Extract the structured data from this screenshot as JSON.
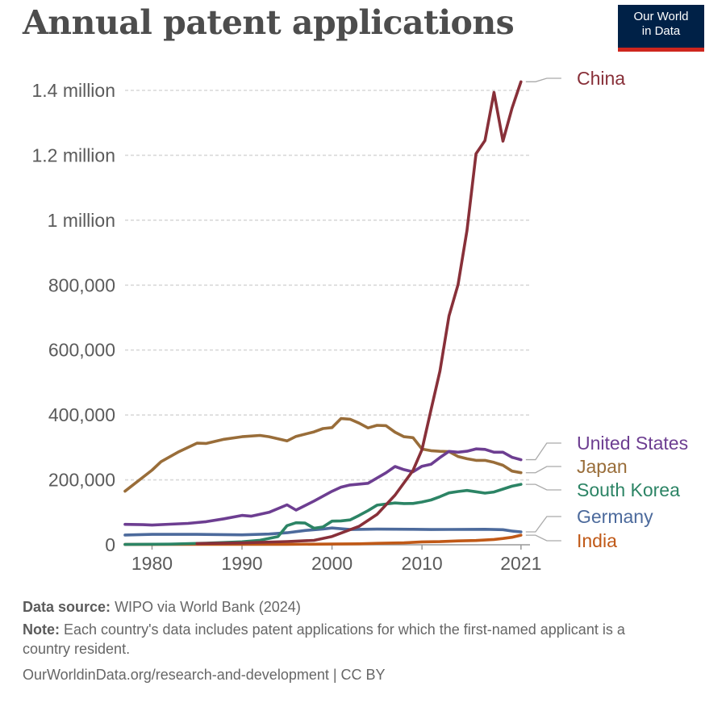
{
  "header": {
    "title": "Annual patent applications",
    "logo_line1": "Our World",
    "logo_line2": "in Data"
  },
  "footer": {
    "source_label": "Data source:",
    "source_text": "WIPO via World Bank (2024)",
    "note_label": "Note:",
    "note_text": "Each country's data includes patent applications for which the first-named applicant is a country resident.",
    "url_text": "OurWorldinData.org/research-and-development",
    "license_text": "| CC BY"
  },
  "colors": {
    "china": "#883039",
    "united_states": "#6d3e91",
    "japan": "#996d39",
    "south_korea": "#2c8465",
    "germany": "#4c6a9c",
    "india": "#c05917",
    "grid": "#d9d9d9",
    "axis_text": "#5b5b5b"
  },
  "chart_data": {
    "type": "line",
    "title": "Annual patent applications",
    "xlim": [
      1977,
      2022
    ],
    "ylim": [
      0,
      1400000
    ],
    "x_ticks": [
      1980,
      1990,
      2000,
      2010,
      2021
    ],
    "y_ticks": [
      {
        "value": 0,
        "label": "0"
      },
      {
        "value": 200000,
        "label": "200,000"
      },
      {
        "value": 400000,
        "label": "400,000"
      },
      {
        "value": 600000,
        "label": "600,000"
      },
      {
        "value": 800000,
        "label": "800,000"
      },
      {
        "value": 1000000,
        "label": "1 million"
      },
      {
        "value": 1200000,
        "label": "1.2 million"
      },
      {
        "value": 1400000,
        "label": "1.4 million"
      }
    ],
    "grid": true,
    "series": [
      {
        "name": "China",
        "color_key": "china",
        "points": [
          [
            1985,
            4000
          ],
          [
            1990,
            5800
          ],
          [
            1995,
            10000
          ],
          [
            1998,
            13700
          ],
          [
            2000,
            25600
          ],
          [
            2003,
            56800
          ],
          [
            2005,
            93500
          ],
          [
            2007,
            153000
          ],
          [
            2009,
            229000
          ],
          [
            2010,
            293000
          ],
          [
            2011,
            415800
          ],
          [
            2012,
            535300
          ],
          [
            2013,
            704900
          ],
          [
            2014,
            801100
          ],
          [
            2015,
            968300
          ],
          [
            2016,
            1204900
          ],
          [
            2017,
            1245700
          ],
          [
            2018,
            1393800
          ],
          [
            2019,
            1243600
          ],
          [
            2020,
            1344800
          ],
          [
            2021,
            1426600
          ]
        ]
      },
      {
        "name": "United States",
        "color_key": "united_states",
        "points": [
          [
            1977,
            62900
          ],
          [
            1979,
            62000
          ],
          [
            1980,
            60600
          ],
          [
            1982,
            63300
          ],
          [
            1984,
            66000
          ],
          [
            1986,
            71100
          ],
          [
            1988,
            80000
          ],
          [
            1990,
            90600
          ],
          [
            1991,
            88000
          ],
          [
            1993,
            99900
          ],
          [
            1995,
            123000
          ],
          [
            1996,
            106900
          ],
          [
            1998,
            134700
          ],
          [
            2000,
            164800
          ],
          [
            2001,
            177500
          ],
          [
            2002,
            184200
          ],
          [
            2004,
            189500
          ],
          [
            2006,
            221800
          ],
          [
            2007,
            241300
          ],
          [
            2008,
            231600
          ],
          [
            2009,
            224900
          ],
          [
            2010,
            241900
          ],
          [
            2011,
            247800
          ],
          [
            2012,
            268800
          ],
          [
            2013,
            287800
          ],
          [
            2014,
            285100
          ],
          [
            2015,
            288300
          ],
          [
            2016,
            295300
          ],
          [
            2017,
            293900
          ],
          [
            2018,
            285100
          ],
          [
            2019,
            285100
          ],
          [
            2020,
            269600
          ],
          [
            2021,
            262200
          ]
        ]
      },
      {
        "name": "Japan",
        "color_key": "japan",
        "points": [
          [
            1977,
            165000
          ],
          [
            1980,
            230000
          ],
          [
            1981,
            256000
          ],
          [
            1983,
            287000
          ],
          [
            1985,
            313000
          ],
          [
            1986,
            312000
          ],
          [
            1988,
            325000
          ],
          [
            1990,
            333000
          ],
          [
            1992,
            337000
          ],
          [
            1993,
            333000
          ],
          [
            1995,
            320000
          ],
          [
            1996,
            334000
          ],
          [
            1998,
            348000
          ],
          [
            1999,
            358000
          ],
          [
            2000,
            361000
          ],
          [
            2001,
            389000
          ],
          [
            2002,
            387000
          ],
          [
            2003,
            375000
          ],
          [
            2004,
            360000
          ],
          [
            2005,
            368000
          ],
          [
            2006,
            367000
          ],
          [
            2007,
            347000
          ],
          [
            2008,
            333000
          ],
          [
            2009,
            330000
          ],
          [
            2010,
            295000
          ],
          [
            2011,
            290000
          ],
          [
            2012,
            288000
          ],
          [
            2013,
            287000
          ],
          [
            2014,
            272000
          ],
          [
            2015,
            265000
          ],
          [
            2016,
            260000
          ],
          [
            2017,
            260000
          ],
          [
            2018,
            254000
          ],
          [
            2019,
            245000
          ],
          [
            2020,
            227000
          ],
          [
            2021,
            222000
          ]
        ]
      },
      {
        "name": "South Korea",
        "color_key": "south_korea",
        "points": [
          [
            1977,
            1000
          ],
          [
            1982,
            2000
          ],
          [
            1986,
            5000
          ],
          [
            1990,
            9100
          ],
          [
            1992,
            14000
          ],
          [
            1994,
            25000
          ],
          [
            1995,
            59000
          ],
          [
            1996,
            68000
          ],
          [
            1997,
            67000
          ],
          [
            1998,
            51000
          ],
          [
            1999,
            55000
          ],
          [
            2000,
            72800
          ],
          [
            2001,
            73700
          ],
          [
            2002,
            76600
          ],
          [
            2003,
            90300
          ],
          [
            2004,
            105300
          ],
          [
            2005,
            122200
          ],
          [
            2006,
            125500
          ],
          [
            2007,
            128700
          ],
          [
            2008,
            127100
          ],
          [
            2009,
            127300
          ],
          [
            2010,
            131800
          ],
          [
            2011,
            138000
          ],
          [
            2012,
            148100
          ],
          [
            2013,
            159900
          ],
          [
            2014,
            164100
          ],
          [
            2015,
            167300
          ],
          [
            2016,
            163400
          ],
          [
            2017,
            159100
          ],
          [
            2018,
            162600
          ],
          [
            2019,
            171600
          ],
          [
            2020,
            180500
          ],
          [
            2021,
            186200
          ]
        ]
      },
      {
        "name": "Germany",
        "color_key": "germany",
        "points": [
          [
            1977,
            30000
          ],
          [
            1980,
            32000
          ],
          [
            1985,
            32000
          ],
          [
            1990,
            30700
          ],
          [
            1993,
            33000
          ],
          [
            1995,
            37000
          ],
          [
            1997,
            44000
          ],
          [
            1999,
            48500
          ],
          [
            2000,
            51700
          ],
          [
            2002,
            47000
          ],
          [
            2005,
            48300
          ],
          [
            2007,
            47900
          ],
          [
            2009,
            47800
          ],
          [
            2011,
            46900
          ],
          [
            2013,
            47300
          ],
          [
            2015,
            47400
          ],
          [
            2017,
            47800
          ],
          [
            2019,
            46600
          ],
          [
            2020,
            42300
          ],
          [
            2021,
            39800
          ]
        ]
      },
      {
        "name": "India",
        "color_key": "india",
        "points": [
          [
            1977,
            1000
          ],
          [
            1985,
            1300
          ],
          [
            1990,
            1300
          ],
          [
            1995,
            1500
          ],
          [
            2000,
            2200
          ],
          [
            2003,
            3000
          ],
          [
            2005,
            4500
          ],
          [
            2008,
            6000
          ],
          [
            2010,
            8900
          ],
          [
            2012,
            9600
          ],
          [
            2014,
            12000
          ],
          [
            2016,
            13200
          ],
          [
            2018,
            16300
          ],
          [
            2019,
            19500
          ],
          [
            2020,
            23100
          ],
          [
            2021,
            29500
          ]
        ]
      }
    ]
  }
}
